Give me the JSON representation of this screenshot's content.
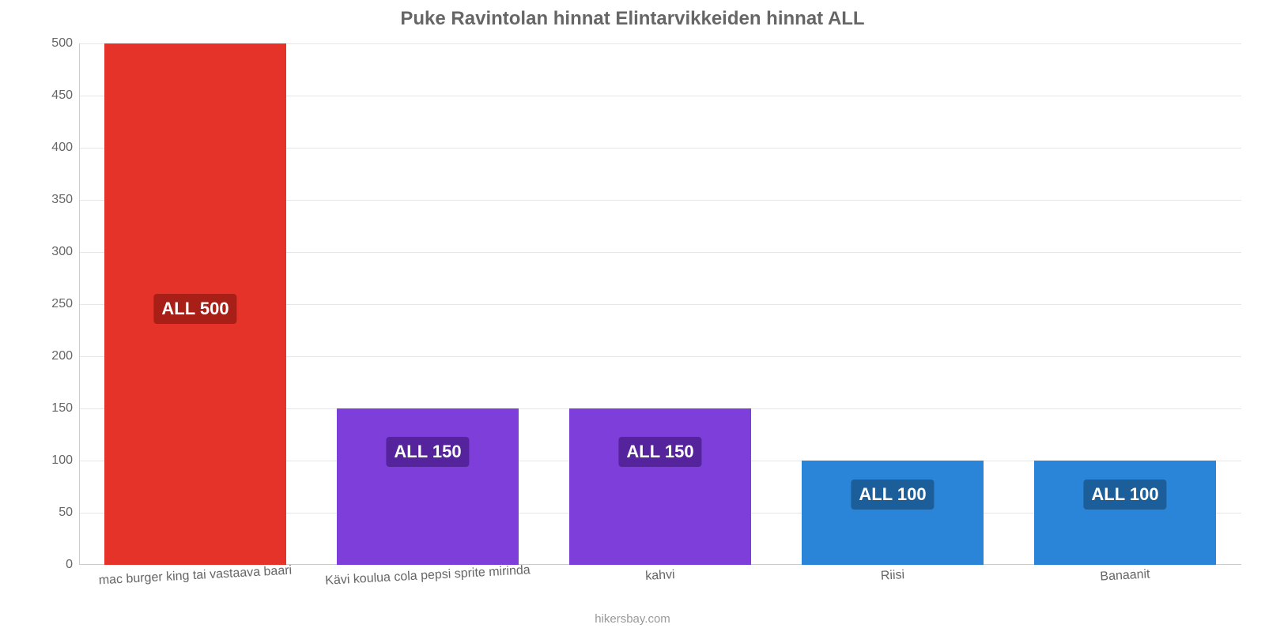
{
  "chart": {
    "type": "bar",
    "title": "Puke Ravintolan hinnat Elintarvikkeiden hinnat ALL",
    "title_color": "#666666",
    "title_fontsize": 24,
    "background_color": "#ffffff",
    "grid_color": "#e6e6e6",
    "axis_color": "#cccccc",
    "tick_label_color": "#666666",
    "tick_fontsize": 16,
    "ylim": [
      0,
      500
    ],
    "ytick_step": 50,
    "yticks": [
      0,
      50,
      100,
      150,
      200,
      250,
      300,
      350,
      400,
      450,
      500
    ],
    "bar_width_pct": 78,
    "categories": [
      "mac burger king tai vastaava baari",
      "Kävi koulua cola pepsi sprite mirinda",
      "kahvi",
      "Riisi",
      "Banaanit"
    ],
    "values": [
      500,
      150,
      150,
      100,
      100
    ],
    "bar_colors": [
      "#e6332a",
      "#7e3ed9",
      "#7e3ed9",
      "#2a85d9",
      "#2a85d9"
    ],
    "value_labels": [
      "ALL 500",
      "ALL 150",
      "ALL 150",
      "ALL 100",
      "ALL 100"
    ],
    "value_label_bg": [
      "#a81f17",
      "#55239b",
      "#55239b",
      "#1b5e99",
      "#1b5e99"
    ],
    "value_label_color": "#ffffff",
    "value_label_fontsize": 22,
    "credit": "hikersbay.com",
    "credit_color": "#999999"
  }
}
